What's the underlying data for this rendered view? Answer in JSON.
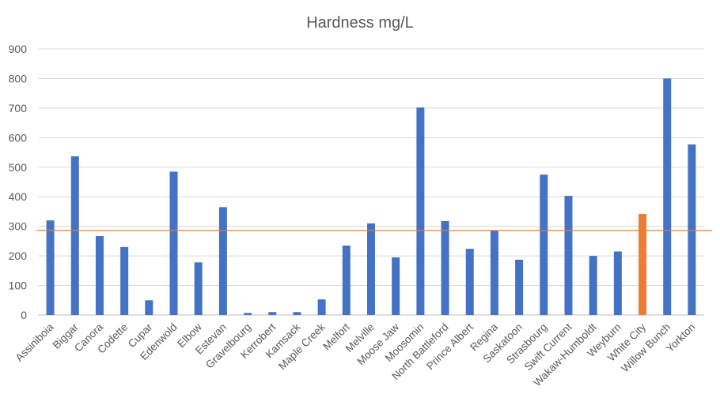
{
  "chart_data": {
    "type": "bar",
    "title": "Hardness mg/L",
    "xlabel": "",
    "ylabel": "",
    "ylim": [
      0,
      900
    ],
    "yticks": [
      0,
      100,
      200,
      300,
      400,
      500,
      600,
      700,
      800,
      900
    ],
    "grid": true,
    "legend": "none",
    "categories": [
      "Assiniboia",
      "Biggar",
      "Canora",
      "Codette",
      "Cupar",
      "Edenwold",
      "Elbow",
      "Estevan",
      "Gravelbourg",
      "Kerrobert",
      "Kamsack",
      "Maple Creek",
      "Melfort",
      "Melville",
      "Moose Jaw",
      "Moosomin",
      "North Battleford",
      "Prince Albert",
      "Regina",
      "Saskatoon",
      "Strasbourg",
      "Swift Current",
      "Wakaw-Humboldt",
      "Weyburn",
      "White City",
      "Willow Bunch",
      "Yorkton"
    ],
    "values": [
      320,
      537,
      267,
      230,
      50,
      485,
      178,
      365,
      7,
      10,
      10,
      53,
      235,
      310,
      195,
      702,
      318,
      224,
      285,
      187,
      475,
      403,
      200,
      215,
      342,
      800,
      577
    ],
    "highlight": {
      "category": "White City",
      "color": "#ED7D31"
    },
    "bar_color": "#4472C4",
    "reference_line": {
      "value": 286,
      "color": "#ED7D31"
    },
    "colors": {
      "grid": "#D9D9D9",
      "text": "#595959",
      "axis": "#BFBFBF"
    }
  }
}
